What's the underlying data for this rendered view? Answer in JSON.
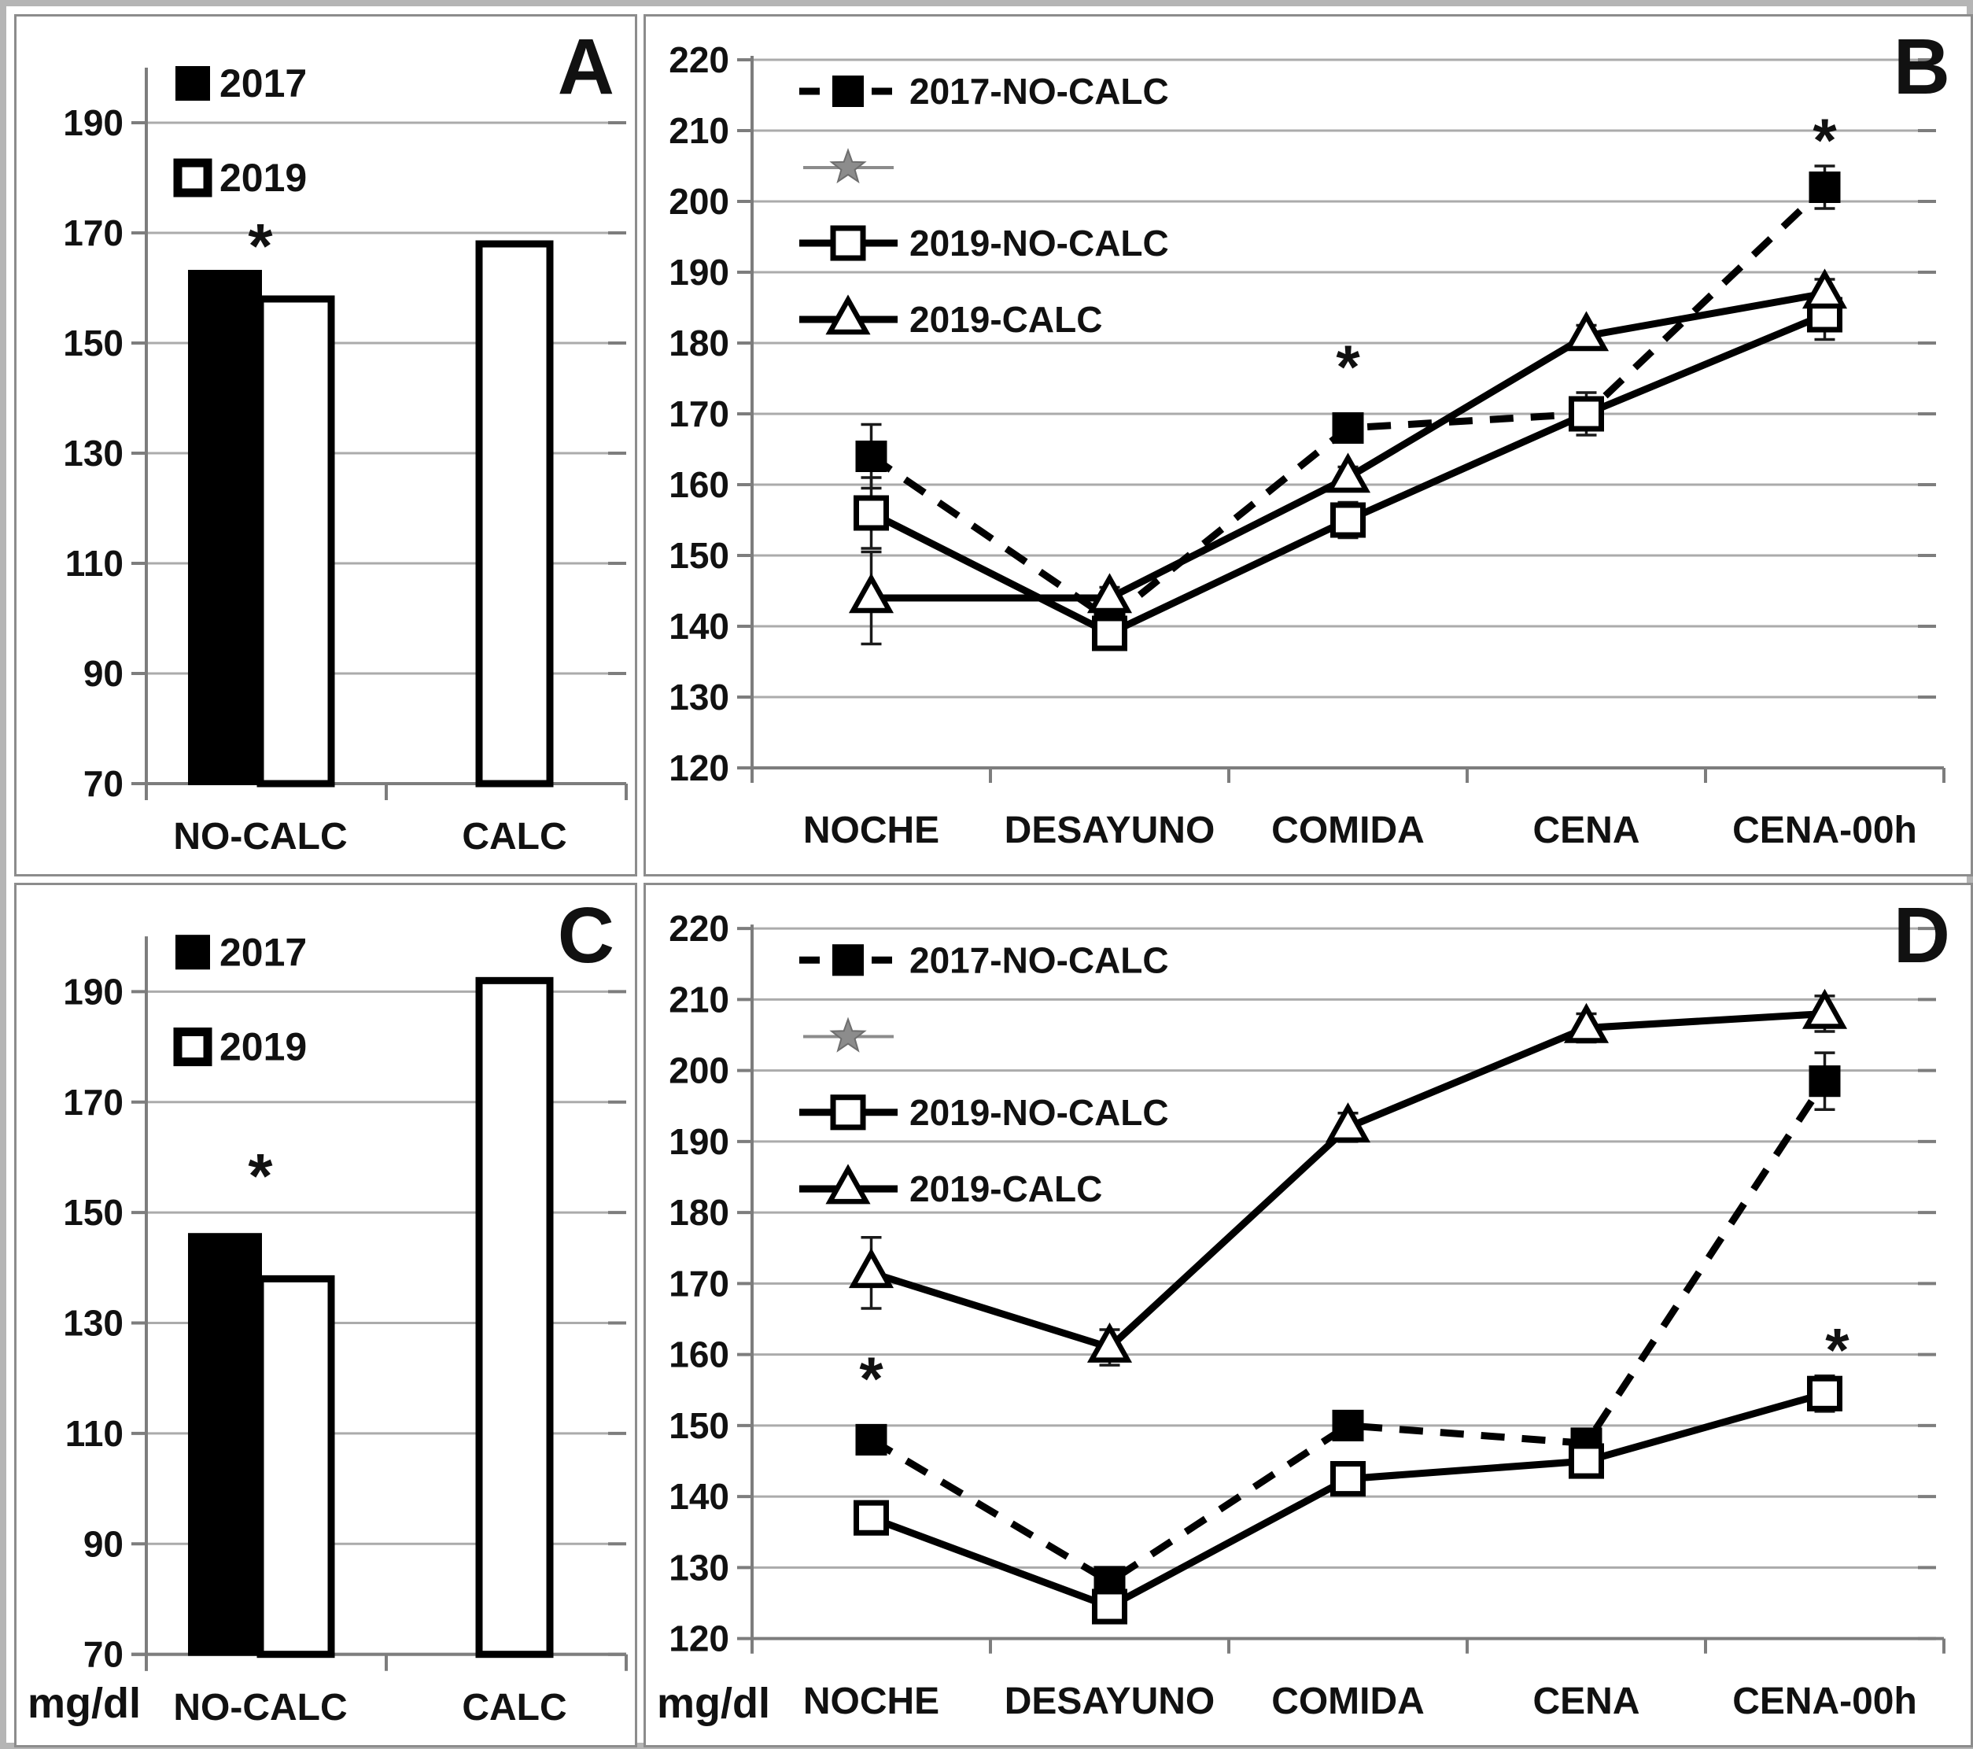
{
  "figure": {
    "description": "Four-panel glucose figure (mg/dl): bar charts A and C, line charts B and D",
    "accent_black": "#000000",
    "grid_gray": "#ababab",
    "star_gray": "#8c8c8c"
  },
  "chart_data": [
    {
      "type": "bar",
      "panel_label": "A",
      "categories": [
        "NO-CALC",
        "CALC"
      ],
      "yticks": [
        70,
        90,
        110,
        130,
        150,
        170,
        190
      ],
      "ylim": [
        70,
        200
      ],
      "legend_position": "top-left-inside",
      "grid": true,
      "series": [
        {
          "name": "2017",
          "fill": "black",
          "values": [
            163,
            null
          ]
        },
        {
          "name": "2019",
          "fill": "white",
          "values": [
            158,
            168
          ]
        }
      ],
      "annotations": [
        {
          "text": "*",
          "category_index": 0,
          "value": 168
        }
      ]
    },
    {
      "type": "line",
      "panel_label": "B",
      "categories": [
        "NOCHE",
        "DESAYUNO",
        "COMIDA",
        "CENA",
        "CENA-00h"
      ],
      "yticks": [
        120,
        130,
        140,
        150,
        160,
        170,
        180,
        190,
        200,
        210,
        220
      ],
      "ylim": [
        120,
        220
      ],
      "legend_position": "top-left-inside",
      "grid": true,
      "series": [
        {
          "name": "2017-NO-CALC",
          "marker": "filled-square",
          "line": "dashed",
          "color": "#000000",
          "values": [
            164,
            141,
            168,
            170,
            202
          ],
          "err": [
            4.5,
            0,
            0,
            0,
            3
          ]
        },
        {
          "name": "",
          "marker": "gray-star",
          "line": "solid",
          "color": "#8c8c8c",
          "values": [],
          "err": []
        },
        {
          "name": "2019-NO-CALC",
          "marker": "open-square",
          "line": "solid",
          "color": "#000000",
          "values": [
            156,
            139,
            155,
            170,
            184
          ],
          "err": [
            5,
            2,
            2.5,
            3,
            3.5
          ]
        },
        {
          "name": "2019-CALC",
          "marker": "open-triangle",
          "line": "solid",
          "color": "#000000",
          "values": [
            144,
            144,
            161,
            181,
            187
          ],
          "err": [
            6.5,
            1.5,
            1.5,
            1.5,
            2
          ]
        }
      ],
      "annotations": [
        {
          "text": "*",
          "category_index": 2,
          "value": 177
        },
        {
          "text": "*",
          "category_index": 4,
          "value": 209
        }
      ]
    },
    {
      "type": "bar",
      "panel_label": "C",
      "unit_label": "mg/dl",
      "categories": [
        "NO-CALC",
        "CALC"
      ],
      "yticks": [
        70,
        90,
        110,
        130,
        150,
        170,
        190
      ],
      "ylim": [
        70,
        200
      ],
      "legend_position": "top-left-inside",
      "grid": true,
      "series": [
        {
          "name": "2017",
          "fill": "black",
          "values": [
            146,
            null
          ]
        },
        {
          "name": "2019",
          "fill": "white",
          "values": [
            138,
            192
          ]
        }
      ],
      "annotations": [
        {
          "text": "*",
          "category_index": 0,
          "value": 157
        }
      ]
    },
    {
      "type": "line",
      "panel_label": "D",
      "unit_label": "mg/dl",
      "categories": [
        "NOCHE",
        "DESAYUNO",
        "COMIDA",
        "CENA",
        "CENA-00h"
      ],
      "yticks": [
        120,
        130,
        140,
        150,
        160,
        170,
        180,
        190,
        200,
        210,
        220
      ],
      "ylim": [
        120,
        220
      ],
      "legend_position": "top-left-inside",
      "grid": true,
      "series": [
        {
          "name": "2017-NO-CALC",
          "marker": "filled-square",
          "line": "dashed",
          "color": "#000000",
          "values": [
            148,
            128,
            150,
            147.5,
            198.5
          ],
          "err": [
            1.5,
            1.5,
            1.5,
            1.5,
            4
          ]
        },
        {
          "name": "",
          "marker": "gray-star",
          "line": "solid",
          "color": "#8c8c8c",
          "values": [],
          "err": []
        },
        {
          "name": "2019-NO-CALC",
          "marker": "open-square",
          "line": "solid",
          "color": "#000000",
          "values": [
            137,
            124.5,
            142.5,
            145,
            154.5
          ],
          "err": [
            1.5,
            1.5,
            1.5,
            1.5,
            2.5
          ]
        },
        {
          "name": "2019-CALC",
          "marker": "open-triangle",
          "line": "solid",
          "color": "#000000",
          "values": [
            171.5,
            161,
            192,
            206,
            208
          ],
          "err": [
            5,
            2.5,
            2,
            2,
            2.5
          ]
        }
      ],
      "annotations": [
        {
          "text": "*",
          "category_index": 0,
          "value": 157
        },
        {
          "text": "*",
          "category_index": 4,
          "value": 161,
          "dx": 16
        }
      ]
    }
  ]
}
